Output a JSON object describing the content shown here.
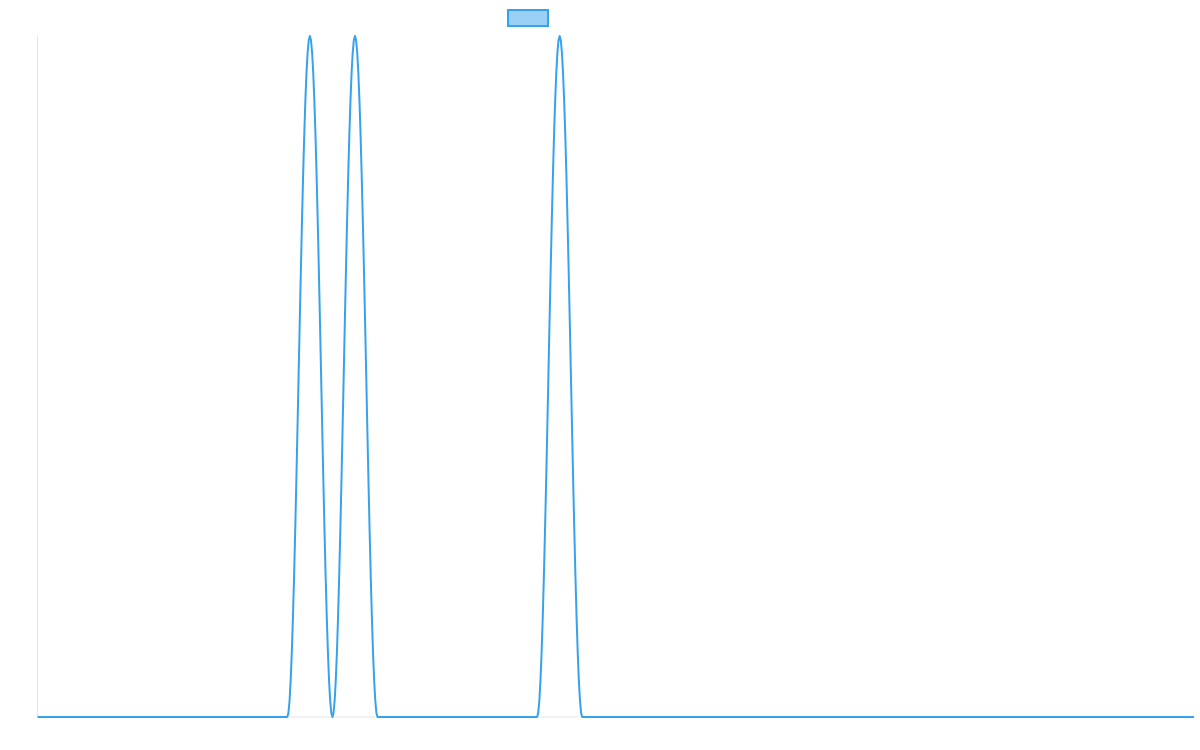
{
  "chart_data": {
    "type": "line",
    "title": "",
    "xlabel": "",
    "ylabel": "",
    "xlim": [
      0,
      100
    ],
    "ylim": [
      0,
      1
    ],
    "grid": false,
    "legend": {
      "placement": "top-center",
      "entries": [
        ""
      ]
    },
    "series": [
      {
        "color": "#36a2eb",
        "fill": "#9ad0f5",
        "pulses": [
          {
            "start": 21.6,
            "end": 25.5
          },
          {
            "start": 25.5,
            "end": 29.4
          },
          {
            "start": 43.2,
            "end": 47.1
          }
        ]
      }
    ]
  }
}
